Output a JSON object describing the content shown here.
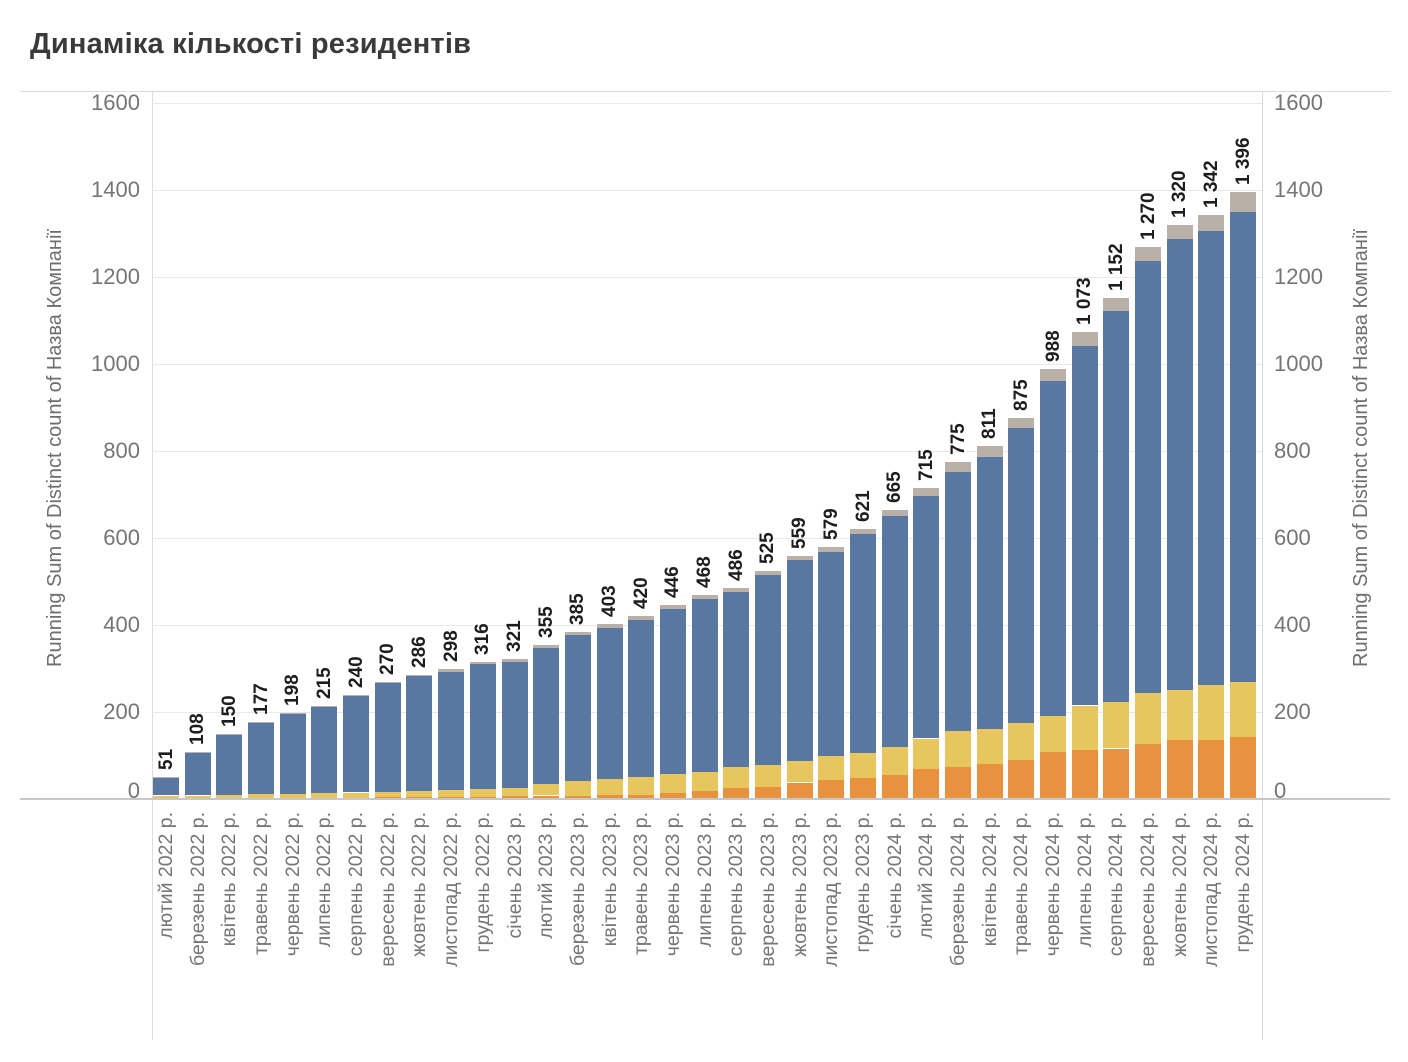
{
  "title": "Динаміка кількості резидентів",
  "y_axis": {
    "label": "Running Sum of Distinct count of Назва Компанії",
    "ticks": [
      0,
      200,
      400,
      600,
      800,
      1000,
      1200,
      1400,
      1600
    ]
  },
  "chart_data": {
    "type": "bar",
    "stacked": true,
    "title": "Динаміка кількості резидентів",
    "ylabel": "Running Sum of Distinct count of Назва Компанії",
    "ylim": [
      0,
      1600
    ],
    "ytick_step": 200,
    "grid": "horizontal",
    "legend": "none",
    "x_tick_rotation": 90,
    "categories": [
      "лютий 2022 р.",
      "березень 2022 р.",
      "квітень 2022 р.",
      "травень 2022 р.",
      "червень 2022 р.",
      "липень 2022 р.",
      "серпень 2022 р.",
      "вересень 2022 р.",
      "жовтень 2022 р.",
      "листопад 2022 р.",
      "грудень 2022 р.",
      "січень 2023 р.",
      "лютий 2023 р.",
      "березень 2023 р.",
      "квітень 2023 р.",
      "травень 2023 р.",
      "червень 2023 р.",
      "липень 2023 р.",
      "серпень 2023 р.",
      "вересень 2023 р.",
      "жовтень 2023 р.",
      "листопад 2023 р.",
      "грудень 2023 р.",
      "січень 2024 р.",
      "лютий 2024 р.",
      "березень 2024 р.",
      "квітень 2024 р.",
      "травень 2024 р.",
      "червень 2024 р.",
      "липень 2024 р.",
      "серпень 2024 р.",
      "вересень 2024 р.",
      "жовтень 2024 р.",
      "листопад 2024 р.",
      "грудень 2024 р."
    ],
    "totals": [
      51,
      108,
      150,
      177,
      198,
      215,
      240,
      270,
      286,
      298,
      316,
      321,
      355,
      385,
      403,
      420,
      446,
      468,
      486,
      525,
      559,
      579,
      621,
      665,
      715,
      775,
      811,
      875,
      988,
      1073,
      1152,
      1270,
      1320,
      1342,
      1396
    ],
    "total_labels": [
      "51",
      "108",
      "150",
      "177",
      "198",
      "215",
      "240",
      "270",
      "286",
      "298",
      "316",
      "321",
      "355",
      "385",
      "403",
      "420",
      "446",
      "468",
      "486",
      "525",
      "559",
      "579",
      "621",
      "665",
      "715",
      "775",
      "811",
      "875",
      "988",
      "1 073",
      "1 152",
      "1 270",
      "1 320",
      "1 342",
      "1 396"
    ],
    "series": [
      {
        "name": "orange-segment",
        "color": "#e8913e",
        "values": [
          0,
          0,
          0,
          0,
          1,
          2,
          3,
          4,
          5,
          5,
          5,
          6,
          8,
          8,
          9,
          10,
          14,
          18,
          25,
          28,
          38,
          43,
          48,
          55,
          70,
          74,
          80,
          90,
          109,
          113,
          116,
          126,
          136,
          136,
          143
        ]
      },
      {
        "name": "yellow-segment",
        "color": "#e7c55f",
        "values": [
          8,
          8,
          10,
          11,
          11,
          11,
          12,
          13,
          14,
          16,
          18,
          20,
          27,
          33,
          37,
          40,
          43,
          45,
          48,
          51,
          50,
          56,
          57,
          64,
          69,
          82,
          81,
          84,
          82,
          102,
          106,
          117,
          115,
          127,
          126
        ]
      },
      {
        "name": "blue-segment",
        "color": "#5878a1",
        "values": [
          41,
          97,
          137,
          163,
          183,
          199,
          221,
          249,
          263,
          272,
          288,
          288,
          312,
          336,
          348,
          362,
          381,
          396,
          403,
          436,
          461,
          469,
          504,
          532,
          558,
          596,
          626,
          678,
          769,
          826,
          899,
          994,
          1036,
          1042,
          1081
        ]
      },
      {
        "name": "gray-segment",
        "color": "#b9b0a8",
        "values": [
          2,
          3,
          3,
          3,
          3,
          3,
          4,
          4,
          4,
          5,
          5,
          7,
          8,
          8,
          9,
          8,
          8,
          9,
          10,
          10,
          10,
          11,
          12,
          14,
          18,
          23,
          24,
          23,
          28,
          32,
          31,
          33,
          33,
          37,
          46
        ]
      }
    ]
  },
  "colors": {
    "title_text": "#3a3a3a",
    "axis_text": "#757575",
    "value_label_text": "#1d1d1d",
    "gridline": "#e9e9e9",
    "border": "#dcdcdc",
    "baseline": "#c7c7c7",
    "background": "#ffffff"
  }
}
